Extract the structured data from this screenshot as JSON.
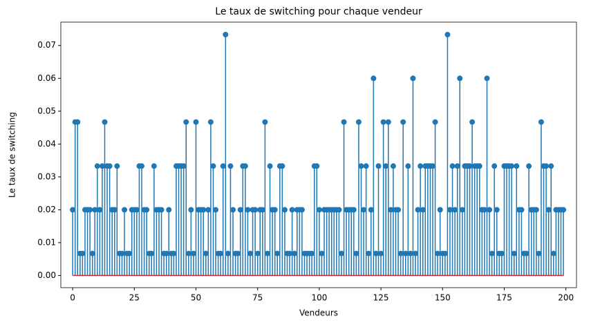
{
  "chart_data": {
    "type": "stem",
    "title": "Le taux de switching pour chaque vendeur",
    "xlabel": "Vendeurs",
    "ylabel": "Le taux de switching",
    "color": "#1f77b4",
    "baseline": 0,
    "baseline_color": "#d62728",
    "xlim": [
      -4.8,
      204.3
    ],
    "ylim": [
      -0.0037,
      0.0771
    ],
    "xticks": [
      0,
      25,
      50,
      75,
      100,
      125,
      150,
      175,
      200
    ],
    "yticks": [
      {
        "value": 0,
        "label": "0.00"
      },
      0.01,
      0.02,
      0.03,
      0.04,
      0.05,
      0.06,
      0.07
    ],
    "x": [
      0,
      1,
      2,
      3,
      4,
      5,
      6,
      7,
      8,
      9,
      10,
      11,
      12,
      13,
      14,
      15,
      16,
      17,
      18,
      19,
      20,
      21,
      22,
      23,
      24,
      25,
      26,
      27,
      28,
      29,
      30,
      31,
      32,
      33,
      34,
      35,
      36,
      37,
      38,
      39,
      40,
      41,
      42,
      43,
      44,
      45,
      46,
      47,
      48,
      49,
      50,
      51,
      52,
      53,
      54,
      55,
      56,
      57,
      58,
      59,
      60,
      61,
      62,
      63,
      64,
      65,
      66,
      67,
      68,
      69,
      70,
      71,
      72,
      73,
      74,
      75,
      76,
      77,
      78,
      79,
      80,
      81,
      82,
      83,
      84,
      85,
      86,
      87,
      88,
      89,
      90,
      91,
      92,
      93,
      94,
      95,
      96,
      97,
      98,
      99,
      100,
      101,
      102,
      103,
      104,
      105,
      106,
      107,
      108,
      109,
      110,
      111,
      112,
      113,
      114,
      115,
      116,
      117,
      118,
      119,
      120,
      121,
      122,
      123,
      124,
      125,
      126,
      127,
      128,
      129,
      130,
      131,
      132,
      133,
      134,
      135,
      136,
      137,
      138,
      139,
      140,
      141,
      142,
      143,
      144,
      145,
      146,
      147,
      148,
      149,
      150,
      151,
      152,
      153,
      154,
      155,
      156,
      157,
      158,
      159,
      160,
      161,
      162,
      163,
      164,
      165,
      166,
      167,
      168,
      169,
      170,
      171,
      172,
      173,
      174,
      175,
      176,
      177,
      178,
      179,
      180,
      181,
      182,
      183,
      184,
      185,
      186,
      187,
      188,
      189,
      190,
      191,
      192,
      193,
      194,
      195,
      196,
      197,
      198,
      199
    ],
    "values": [
      0.02,
      0.0467,
      0.0467,
      0.0067,
      0.0067,
      0.02,
      0.02,
      0.02,
      0.0067,
      0.02,
      0.0333,
      0.02,
      0.0333,
      0.0467,
      0.0333,
      0.0333,
      0.02,
      0.02,
      0.0333,
      0.0067,
      0.0067,
      0.02,
      0.0067,
      0.0067,
      0.02,
      0.02,
      0.02,
      0.0333,
      0.0333,
      0.02,
      0.02,
      0.0067,
      0.0067,
      0.0333,
      0.02,
      0.02,
      0.02,
      0.0067,
      0.0067,
      0.02,
      0.0067,
      0.0067,
      0.0333,
      0.0333,
      0.0333,
      0.0333,
      0.0467,
      0.0067,
      0.02,
      0.0067,
      0.0467,
      0.02,
      0.02,
      0.02,
      0.0067,
      0.02,
      0.0467,
      0.0333,
      0.02,
      0.0067,
      0.0067,
      0.0333,
      0.0733,
      0.0067,
      0.0333,
      0.02,
      0.0067,
      0.0067,
      0.02,
      0.0333,
      0.0333,
      0.02,
      0.0067,
      0.02,
      0.02,
      0.0067,
      0.02,
      0.02,
      0.0467,
      0.0067,
      0.0333,
      0.02,
      0.02,
      0.0067,
      0.0333,
      0.0333,
      0.02,
      0.0067,
      0.0067,
      0.02,
      0.0067,
      0.02,
      0.02,
      0.02,
      0.0067,
      0.0067,
      0.0067,
      0.0067,
      0.0333,
      0.0333,
      0.02,
      0.0067,
      0.02,
      0.02,
      0.02,
      0.02,
      0.02,
      0.02,
      0.02,
      0.0067,
      0.0467,
      0.02,
      0.02,
      0.02,
      0.02,
      0.0067,
      0.0467,
      0.0333,
      0.02,
      0.0333,
      0.0067,
      0.02,
      0.06,
      0.0067,
      0.0333,
      0.0067,
      0.0467,
      0.0333,
      0.0467,
      0.02,
      0.0333,
      0.02,
      0.02,
      0.0067,
      0.0467,
      0.0067,
      0.0333,
      0.0067,
      0.06,
      0.0067,
      0.02,
      0.0333,
      0.02,
      0.0333,
      0.0333,
      0.0333,
      0.0333,
      0.0467,
      0.0067,
      0.02,
      0.0067,
      0.0067,
      0.0733,
      0.02,
      0.0333,
      0.02,
      0.0333,
      0.06,
      0.02,
      0.0333,
      0.0333,
      0.0333,
      0.0467,
      0.0333,
      0.0333,
      0.0333,
      0.02,
      0.02,
      0.06,
      0.02,
      0.0067,
      0.0333,
      0.02,
      0.0067,
      0.0067,
      0.0333,
      0.0333,
      0.0333,
      0.0333,
      0.0067,
      0.0333,
      0.02,
      0.02,
      0.0067,
      0.0067,
      0.0333,
      0.02,
      0.02,
      0.02,
      0.0067,
      0.0467,
      0.0333,
      0.0333,
      0.02,
      0.0333,
      0.0067,
      0.02,
      0.02,
      0.02,
      0.02
    ]
  }
}
